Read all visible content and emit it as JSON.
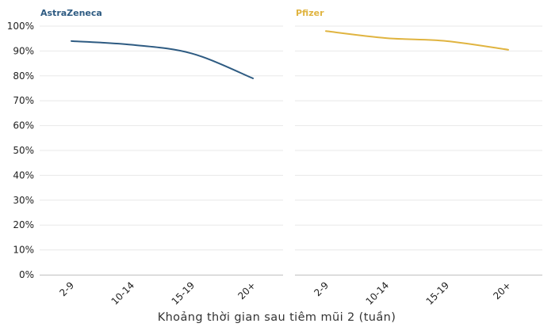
{
  "chart_data": [
    {
      "type": "line",
      "title": "AstraZeneca",
      "color": "#2e5b82",
      "categories": [
        "2-9",
        "10-14",
        "15-19",
        "20+"
      ],
      "values": [
        94,
        92.5,
        89,
        79
      ],
      "ylim": [
        0,
        100
      ],
      "y_ticks": [
        "100%",
        "90%",
        "80%",
        "70%",
        "60%",
        "50%",
        "40%",
        "30%",
        "20%",
        "10%",
        "0%"
      ],
      "grid": "horizontal"
    },
    {
      "type": "line",
      "title": "Pfizer",
      "color": "#e0b440",
      "categories": [
        "2-9",
        "10-14",
        "15-19",
        "20+"
      ],
      "values": [
        98,
        95.2,
        94,
        90.5
      ],
      "ylim": [
        0,
        100
      ],
      "grid": "horizontal"
    }
  ],
  "xlabel": "Khoảng thời gian sau tiêm mũi 2 (tuần)"
}
